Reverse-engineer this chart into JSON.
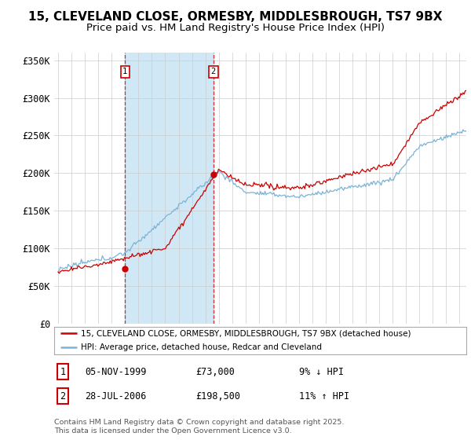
{
  "title": "15, CLEVELAND CLOSE, ORMESBY, MIDDLESBROUGH, TS7 9BX",
  "subtitle": "Price paid vs. HM Land Registry's House Price Index (HPI)",
  "ylim": [
    0,
    360000
  ],
  "yticks": [
    0,
    50000,
    100000,
    150000,
    200000,
    250000,
    300000,
    350000
  ],
  "ytick_labels": [
    "£0",
    "£50K",
    "£100K",
    "£150K",
    "£200K",
    "£250K",
    "£300K",
    "£350K"
  ],
  "hpi_color": "#7ab4d8",
  "price_color": "#cc0000",
  "marker_color": "#cc0000",
  "sale1_date_num": 2000.0,
  "sale1_price": 73000,
  "sale1_label": "1",
  "sale2_date_num": 2006.6,
  "sale2_price": 198500,
  "sale2_label": "2",
  "vline_color": "#cc0000",
  "shade_color": "#d0e8f5",
  "legend_label_red": "15, CLEVELAND CLOSE, ORMESBY, MIDDLESBROUGH, TS7 9BX (detached house)",
  "legend_label_blue": "HPI: Average price, detached house, Redcar and Cleveland",
  "table_row1": [
    "1",
    "05-NOV-1999",
    "£73,000",
    "9% ↓ HPI"
  ],
  "table_row2": [
    "2",
    "28-JUL-2006",
    "£198,500",
    "11% ↑ HPI"
  ],
  "footer": "Contains HM Land Registry data © Crown copyright and database right 2025.\nThis data is licensed under the Open Government Licence v3.0.",
  "background_color": "#ffffff",
  "grid_color": "#cccccc",
  "title_fontsize": 11,
  "subtitle_fontsize": 9.5,
  "xstart": 1995.0,
  "xend": 2025.5
}
